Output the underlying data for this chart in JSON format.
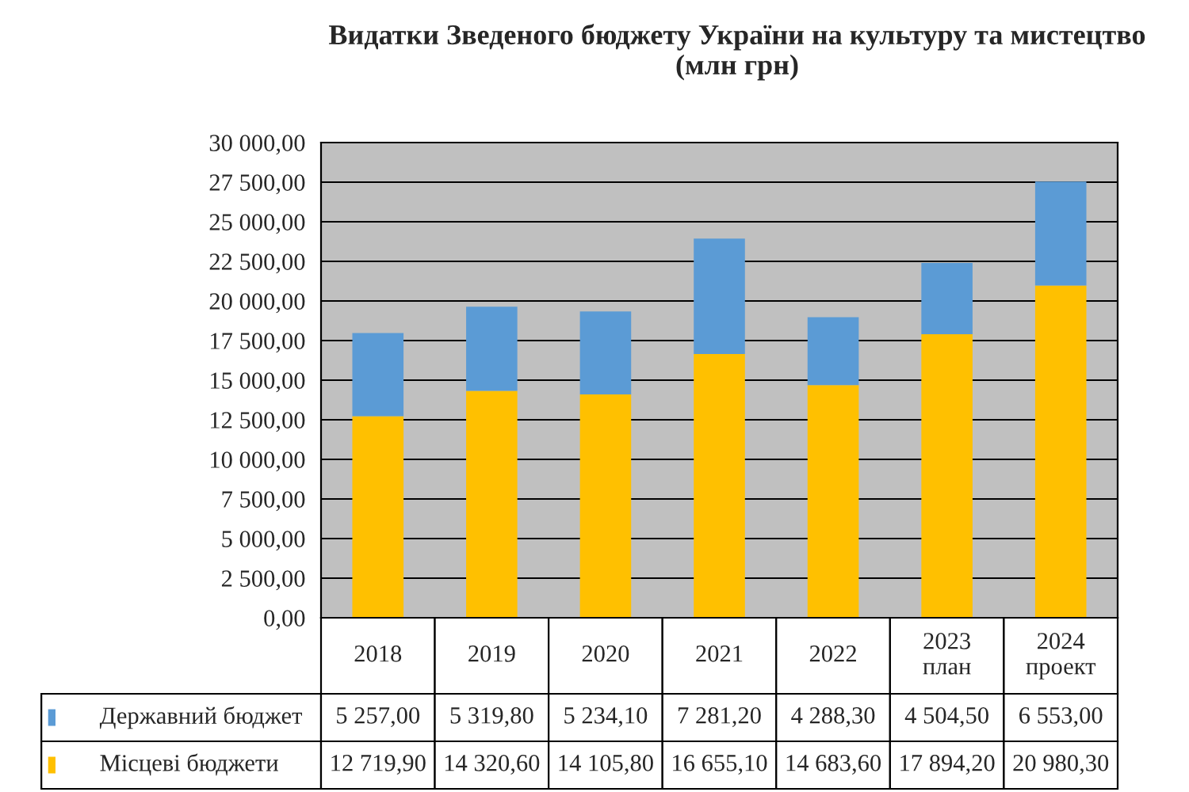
{
  "chart_data": {
    "type": "bar",
    "title": "Видатки Зведеного бюджету України на культуру та мистецтво\n(млн грн)",
    "categories": [
      "2018",
      "2019",
      "2020",
      "2021",
      "2022",
      "2023\nплан",
      "2024\nпроект"
    ],
    "stacked": true,
    "series": [
      {
        "name": "Місцеві бюджети",
        "color": "#ffc000",
        "values": [
          12719.9,
          14320.6,
          14105.8,
          16655.1,
          14683.6,
          17894.2,
          20980.3
        ],
        "value_labels": [
          "12 719,90",
          "14 320,60",
          "14 105,80",
          "16 655,10",
          "14 683,60",
          "17 894,20",
          "20 980,30"
        ]
      },
      {
        "name": "Державний бюджет",
        "color": "#5b9bd5",
        "values": [
          5257.0,
          5319.8,
          5234.1,
          7281.2,
          4288.3,
          4504.5,
          6553.0
        ],
        "value_labels": [
          "5 257,00",
          "5 319,80",
          "5 234,10",
          "7 281,20",
          "4 288,30",
          "4 504,50",
          "6 553,00"
        ]
      }
    ],
    "ylim": [
      0,
      30000
    ],
    "yticks": [
      {
        "value": 0,
        "label": "0,00"
      },
      {
        "value": 2500,
        "label": "2 500,00"
      },
      {
        "value": 5000,
        "label": "5 000,00"
      },
      {
        "value": 7500,
        "label": "7 500,00"
      },
      {
        "value": 10000,
        "label": "10 000,00"
      },
      {
        "value": 12500,
        "label": "12 500,00"
      },
      {
        "value": 15000,
        "label": "15 000,00"
      },
      {
        "value": 17500,
        "label": "17 500,00"
      },
      {
        "value": 20000,
        "label": "20 000,00"
      },
      {
        "value": 22500,
        "label": "22 500,00"
      },
      {
        "value": 25000,
        "label": "25 000,00"
      },
      {
        "value": 27500,
        "label": "27 500,00"
      },
      {
        "value": 30000,
        "label": "30 000,00"
      }
    ],
    "grid": "y",
    "legend": "bottom"
  }
}
